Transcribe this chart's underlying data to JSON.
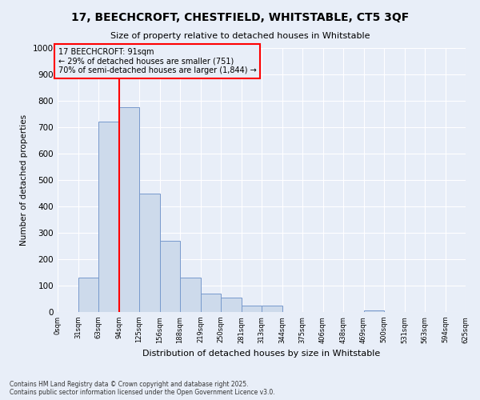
{
  "title": "17, BEECHCROFT, CHESTFIELD, WHITSTABLE, CT5 3QF",
  "subtitle": "Size of property relative to detached houses in Whitstable",
  "xlabel": "Distribution of detached houses by size in Whitstable",
  "ylabel": "Number of detached properties",
  "footer": "Contains HM Land Registry data © Crown copyright and database right 2025.\nContains public sector information licensed under the Open Government Licence v3.0.",
  "bin_labels": [
    "0sqm",
    "31sqm",
    "63sqm",
    "94sqm",
    "125sqm",
    "156sqm",
    "188sqm",
    "219sqm",
    "250sqm",
    "281sqm",
    "313sqm",
    "344sqm",
    "375sqm",
    "406sqm",
    "438sqm",
    "469sqm",
    "500sqm",
    "531sqm",
    "563sqm",
    "594sqm",
    "625sqm"
  ],
  "bar_heights": [
    0,
    130,
    720,
    775,
    450,
    270,
    130,
    70,
    55,
    25,
    25,
    0,
    0,
    0,
    0,
    5,
    0,
    0,
    0,
    0
  ],
  "bar_color": "#cddaeb",
  "bar_edge_color": "#7799cc",
  "property_line_bin": 3,
  "property_line_color": "red",
  "annotation_text": "17 BEECHCROFT: 91sqm\n← 29% of detached houses are smaller (751)\n70% of semi-detached houses are larger (1,844) →",
  "annotation_box_color": "red",
  "ylim": [
    0,
    1000
  ],
  "yticks": [
    0,
    100,
    200,
    300,
    400,
    500,
    600,
    700,
    800,
    900,
    1000
  ],
  "background_color": "#e8eef8",
  "grid_color": "white",
  "n_bins": 20,
  "bin_step": 31.25
}
